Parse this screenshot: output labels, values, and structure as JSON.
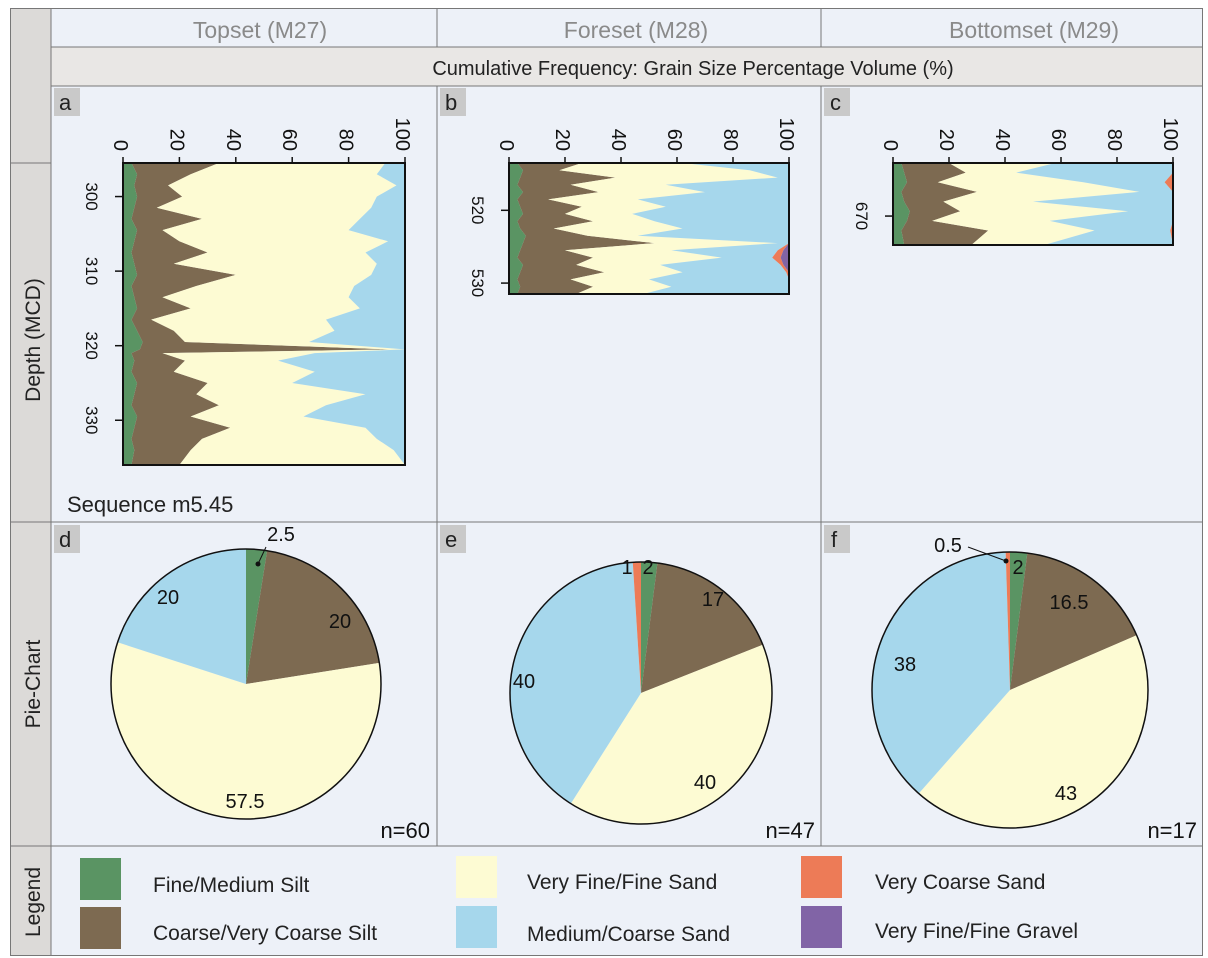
{
  "colors": {
    "fine_medium_silt": "#5a9463",
    "coarse_very_coarse_silt": "#7d6a51",
    "very_fine_fine_sand": "#fdfbd3",
    "medium_coarse_sand": "#a6d7ec",
    "very_coarse_sand": "#ed7b57",
    "very_fine_fine_gravel": "#8164a6",
    "panel_bg": "#edf1f8",
    "header_bg": "#e9e7e5",
    "grid": "#777777"
  },
  "columns": [
    {
      "title": "Topset (M27)"
    },
    {
      "title": "Foreset (M28)"
    },
    {
      "title": "Bottomset (M29)"
    }
  ],
  "header": {
    "cumulative_title": "Cumulative Frequency: Grain Size Percentage Volume  (%)"
  },
  "row_labels": {
    "depth": "Depth (MCD)",
    "pie": "Pie-Chart",
    "legend": "Legend"
  },
  "sequence_label": "Sequence m5.45",
  "legend_items": [
    {
      "label": "Fine/Medium Silt",
      "color_key": "fine_medium_silt"
    },
    {
      "label": "Coarse/Very Coarse Silt",
      "color_key": "coarse_very_coarse_silt"
    },
    {
      "label": "Very Fine/Fine Sand",
      "color_key": "very_fine_fine_sand"
    },
    {
      "label": "Medium/Coarse Sand",
      "color_key": "medium_coarse_sand"
    },
    {
      "label": "Very Coarse Sand",
      "color_key": "very_coarse_sand"
    },
    {
      "label": "Very Fine/Fine Gravel",
      "color_key": "very_fine_fine_gravel"
    }
  ],
  "chart_data": [
    {
      "type": "area",
      "panel": "a",
      "column": "Topset (M27)",
      "xlabel": "Cumulative Frequency: Grain Size Percentage Volume  (%)",
      "ylabel": "Depth (MCD)",
      "xlim": [
        0,
        100
      ],
      "xticks": [
        0,
        20,
        40,
        60,
        80,
        100
      ],
      "ylim": [
        295.5,
        336
      ],
      "yticks": [
        300,
        310,
        320,
        330
      ],
      "depth": [
        295.5,
        297,
        298.5,
        300,
        301.5,
        303,
        304.5,
        306,
        307.5,
        309,
        310.5,
        312,
        313.5,
        315,
        316.5,
        318,
        319.5,
        320.5,
        321,
        322,
        323.5,
        325,
        326.5,
        328,
        329.5,
        331,
        332.5,
        334,
        336
      ],
      "series": [
        {
          "name": "Fine/Medium Silt",
          "cumulative": [
            3,
            5,
            4,
            5,
            4,
            3,
            5,
            4,
            3,
            4,
            5,
            3,
            4,
            5,
            3,
            5,
            7,
            6,
            3,
            4,
            3,
            5,
            4,
            3,
            5,
            4,
            3,
            4,
            3
          ]
        },
        {
          "name": "Coarse/Very Coarse Silt",
          "cumulative": [
            34,
            24,
            16,
            21,
            12,
            28,
            14,
            20,
            30,
            18,
            40,
            26,
            14,
            24,
            10,
            18,
            22,
            95,
            14,
            22,
            18,
            30,
            26,
            34,
            24,
            38,
            28,
            24,
            20
          ]
        },
        {
          "name": "Very Fine/Fine Sand",
          "cumulative": [
            93,
            90,
            97,
            90,
            88,
            84,
            80,
            94,
            86,
            90,
            88,
            82,
            80,
            84,
            72,
            75,
            66,
            100,
            68,
            55,
            68,
            60,
            86,
            72,
            64,
            86,
            90,
            96,
            100
          ]
        },
        {
          "name": "Medium/Coarse Sand",
          "cumulative": [
            100,
            100,
            100,
            100,
            100,
            100,
            100,
            100,
            100,
            100,
            100,
            100,
            100,
            100,
            100,
            100,
            100,
            100,
            100,
            100,
            100,
            100,
            100,
            100,
            100,
            100,
            100,
            100,
            100
          ]
        }
      ]
    },
    {
      "type": "area",
      "panel": "b",
      "column": "Foreset (M28)",
      "xlabel": "Cumulative Frequency: Grain Size Percentage Volume  (%)",
      "ylabel": "Depth (MCD)",
      "xlim": [
        0,
        100
      ],
      "xticks": [
        0,
        20,
        40,
        60,
        80,
        100
      ],
      "ylim": [
        513.5,
        531.5
      ],
      "yticks": [
        520,
        530
      ],
      "depth": [
        513.5,
        514.5,
        515.5,
        516.5,
        517.5,
        518.5,
        519.5,
        520.5,
        521.5,
        522.5,
        523.5,
        524.5,
        525.5,
        526.5,
        527.5,
        528.5,
        529.5,
        530.5,
        531.5
      ],
      "series": [
        {
          "name": "Fine/Medium Silt",
          "cumulative": [
            3,
            5,
            4,
            3,
            5,
            3,
            4,
            5,
            3,
            4,
            6,
            5,
            4,
            3,
            5,
            4,
            3,
            4,
            3
          ]
        },
        {
          "name": "Coarse/Very Coarse Silt",
          "cumulative": [
            26,
            18,
            38,
            22,
            32,
            14,
            26,
            20,
            30,
            16,
            28,
            52,
            20,
            30,
            24,
            34,
            22,
            30,
            24
          ]
        },
        {
          "name": "Very Fine/Fine Sand",
          "cumulative": [
            62,
            86,
            96,
            56,
            70,
            46,
            56,
            44,
            52,
            62,
            46,
            96,
            58,
            76,
            54,
            62,
            50,
            58,
            48
          ]
        },
        {
          "name": "Medium/Coarse Sand",
          "cumulative": [
            100,
            100,
            100,
            100,
            100,
            100,
            100,
            100,
            100,
            100,
            100,
            100,
            96,
            94,
            97,
            99,
            100,
            100,
            100
          ]
        },
        {
          "name": "Very Coarse Sand",
          "cumulative": [
            100,
            100,
            100,
            100,
            100,
            100,
            100,
            100,
            100,
            100,
            100,
            100,
            98,
            97,
            98,
            100,
            100,
            100,
            100
          ]
        },
        {
          "name": "Very Fine/Fine Gravel",
          "cumulative": [
            100,
            100,
            100,
            100,
            100,
            100,
            100,
            100,
            100,
            100,
            100,
            100,
            100,
            100,
            100,
            100,
            100,
            100,
            100
          ]
        }
      ]
    },
    {
      "type": "area",
      "panel": "c",
      "column": "Bottomset (M29)",
      "xlabel": "Cumulative Frequency: Grain Size Percentage Volume  (%)",
      "ylabel": "Depth (MCD)",
      "xlim": [
        0,
        100
      ],
      "xticks": [
        0,
        20,
        40,
        60,
        80,
        100
      ],
      "ylim": [
        664.5,
        673
      ],
      "yticks": [
        670
      ],
      "depth": [
        664.5,
        665.5,
        666.5,
        667.5,
        668.5,
        669.5,
        670.5,
        671.5,
        673
      ],
      "series": [
        {
          "name": "Fine/Medium Silt",
          "cumulative": [
            3,
            4,
            5,
            3,
            4,
            6,
            5,
            3,
            4
          ]
        },
        {
          "name": "Coarse/Very Coarse Silt",
          "cumulative": [
            20,
            26,
            16,
            30,
            18,
            24,
            14,
            34,
            28
          ]
        },
        {
          "name": "Very Fine/Fine Sand",
          "cumulative": [
            58,
            44,
            68,
            88,
            50,
            84,
            56,
            72,
            54
          ]
        },
        {
          "name": "Medium/Coarse Sand",
          "cumulative": [
            100,
            100,
            97,
            100,
            100,
            100,
            100,
            99,
            100
          ]
        },
        {
          "name": "Very Coarse Sand",
          "cumulative": [
            100,
            100,
            100,
            100,
            100,
            100,
            100,
            100,
            100
          ]
        }
      ]
    },
    {
      "type": "pie",
      "panel": "d",
      "column": "Topset (M27)",
      "n_label": "n=60",
      "slices": [
        {
          "name": "Fine/Medium Silt",
          "value": 2.5,
          "label": "2.5"
        },
        {
          "name": "Coarse/Very Coarse Silt",
          "value": 20,
          "label": "20"
        },
        {
          "name": "Very Fine/Fine Sand",
          "value": 57.5,
          "label": "57.5"
        },
        {
          "name": "Medium/Coarse Sand",
          "value": 20,
          "label": "20"
        }
      ]
    },
    {
      "type": "pie",
      "panel": "e",
      "column": "Foreset (M28)",
      "n_label": "n=47",
      "slices": [
        {
          "name": "Fine/Medium Silt",
          "value": 2,
          "label": "2"
        },
        {
          "name": "Coarse/Very Coarse Silt",
          "value": 17,
          "label": "17"
        },
        {
          "name": "Very Fine/Fine Sand",
          "value": 40,
          "label": "40"
        },
        {
          "name": "Medium/Coarse Sand",
          "value": 40,
          "label": "40"
        },
        {
          "name": "Very Coarse Sand",
          "value": 1,
          "label": "1"
        }
      ]
    },
    {
      "type": "pie",
      "panel": "f",
      "column": "Bottomset (M29)",
      "n_label": "n=17",
      "slices": [
        {
          "name": "Fine/Medium Silt",
          "value": 2,
          "label": "2"
        },
        {
          "name": "Coarse/Very Coarse Silt",
          "value": 16.5,
          "label": "16.5"
        },
        {
          "name": "Very Fine/Fine Sand",
          "value": 43,
          "label": "43"
        },
        {
          "name": "Medium/Coarse Sand",
          "value": 38,
          "label": "38"
        },
        {
          "name": "Very Coarse Sand",
          "value": 0.5,
          "label": "0.5"
        }
      ]
    }
  ]
}
